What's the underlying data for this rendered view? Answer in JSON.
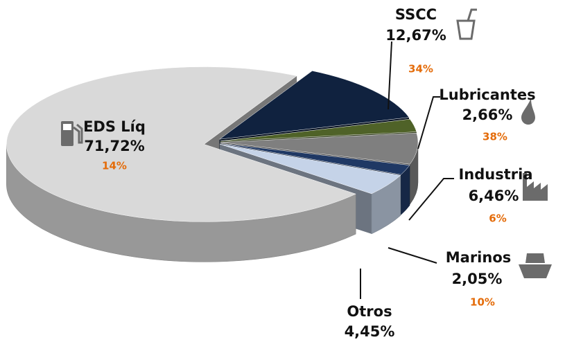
{
  "chart_data": {
    "type": "pie3d",
    "categories": [
      "EDS Líq",
      "SSCC",
      "Lubricantes",
      "Industria",
      "Marinos",
      "Otros"
    ],
    "values": [
      71.72,
      12.67,
      2.66,
      6.46,
      2.05,
      4.45
    ],
    "value_labels": [
      "71,72%",
      "12,67%",
      "2,66%",
      "6,46%",
      "2,05%",
      "4,45%"
    ],
    "secondary_labels": [
      "14%",
      "34%",
      "38%",
      "6%",
      "10%",
      null
    ],
    "colors": [
      "#d9d9d9",
      "#10223f",
      "#4f6228",
      "#7f7f7f",
      "#1f3864",
      "#c5d3e8"
    ]
  }
}
